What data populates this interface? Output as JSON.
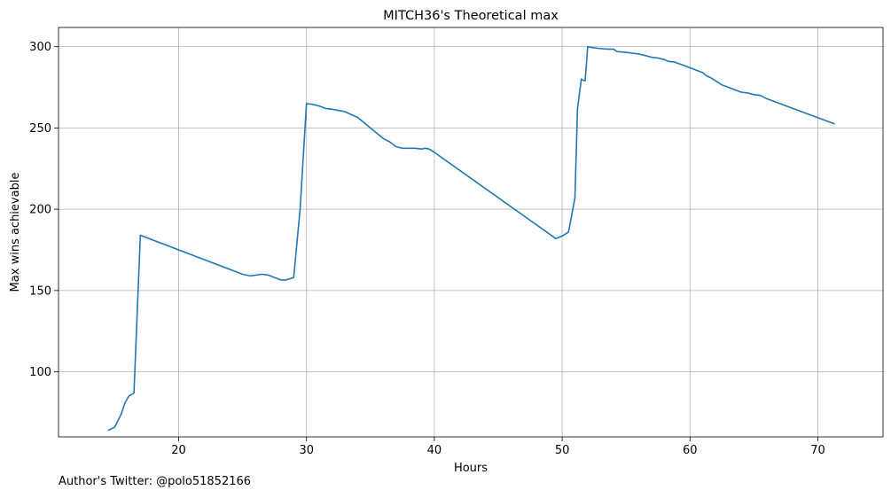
{
  "footer": {
    "credit": "Author's Twitter: @polo51852166"
  },
  "chart_data": {
    "type": "line",
    "title": "MITCH36's Theoretical max",
    "xlabel": "Hours",
    "ylabel": "Max wins achievable",
    "xlim": [
      10.6,
      75.1
    ],
    "ylim": [
      60.0,
      311.8
    ],
    "x_ticks": [
      20,
      30,
      40,
      50,
      60,
      70
    ],
    "y_ticks": [
      100,
      150,
      200,
      250,
      300
    ],
    "grid": true,
    "line_color": "#1f77b4",
    "series": [
      {
        "x": [
          14.5,
          15.0,
          15.5,
          15.8,
          16.1,
          16.3,
          16.5,
          17.0,
          25.0,
          25.6,
          26.5,
          27.0,
          27.5,
          28.0,
          28.4,
          28.8,
          29.0,
          29.5,
          30.0,
          30.5,
          31.0,
          31.5,
          32.0,
          33.0,
          34.0,
          35.0,
          36.0,
          36.5,
          37.0,
          37.5,
          38.0,
          38.5,
          39.0,
          39.3,
          39.6,
          40.0,
          49.5,
          50.0,
          50.5,
          51.0,
          51.2,
          51.5,
          51.6,
          51.8,
          52.0,
          52.3,
          52.8,
          53.5,
          54.0,
          54.3,
          55.0,
          55.5,
          56.0,
          56.5,
          57.0,
          57.5,
          58.0,
          58.3,
          58.8,
          59.5,
          60.0,
          60.5,
          61.0,
          61.3,
          61.6,
          62.0,
          62.5,
          63.0,
          63.5,
          64.0,
          64.5,
          65.0,
          65.5,
          66.0,
          71.3
        ],
        "y": [
          64,
          66,
          74,
          81,
          85,
          86,
          87,
          184,
          160,
          159,
          160,
          159.5,
          158,
          156.5,
          156.5,
          157.5,
          158,
          200,
          265,
          264.5,
          263.5,
          262,
          261.5,
          260,
          256.5,
          250,
          243.5,
          241.5,
          238.5,
          237.5,
          237.5,
          237.5,
          237,
          237.5,
          237,
          235,
          182,
          183.5,
          186,
          207,
          262,
          280,
          279.5,
          279,
          300,
          299.5,
          299,
          298.5,
          298.5,
          297,
          296.5,
          296,
          295.5,
          294.5,
          293.5,
          293,
          292,
          291,
          290.5,
          288.5,
          287,
          285.5,
          284,
          282,
          281,
          279,
          276.5,
          275,
          273.5,
          272,
          271.5,
          270.5,
          270,
          268,
          252.5
        ]
      }
    ]
  }
}
